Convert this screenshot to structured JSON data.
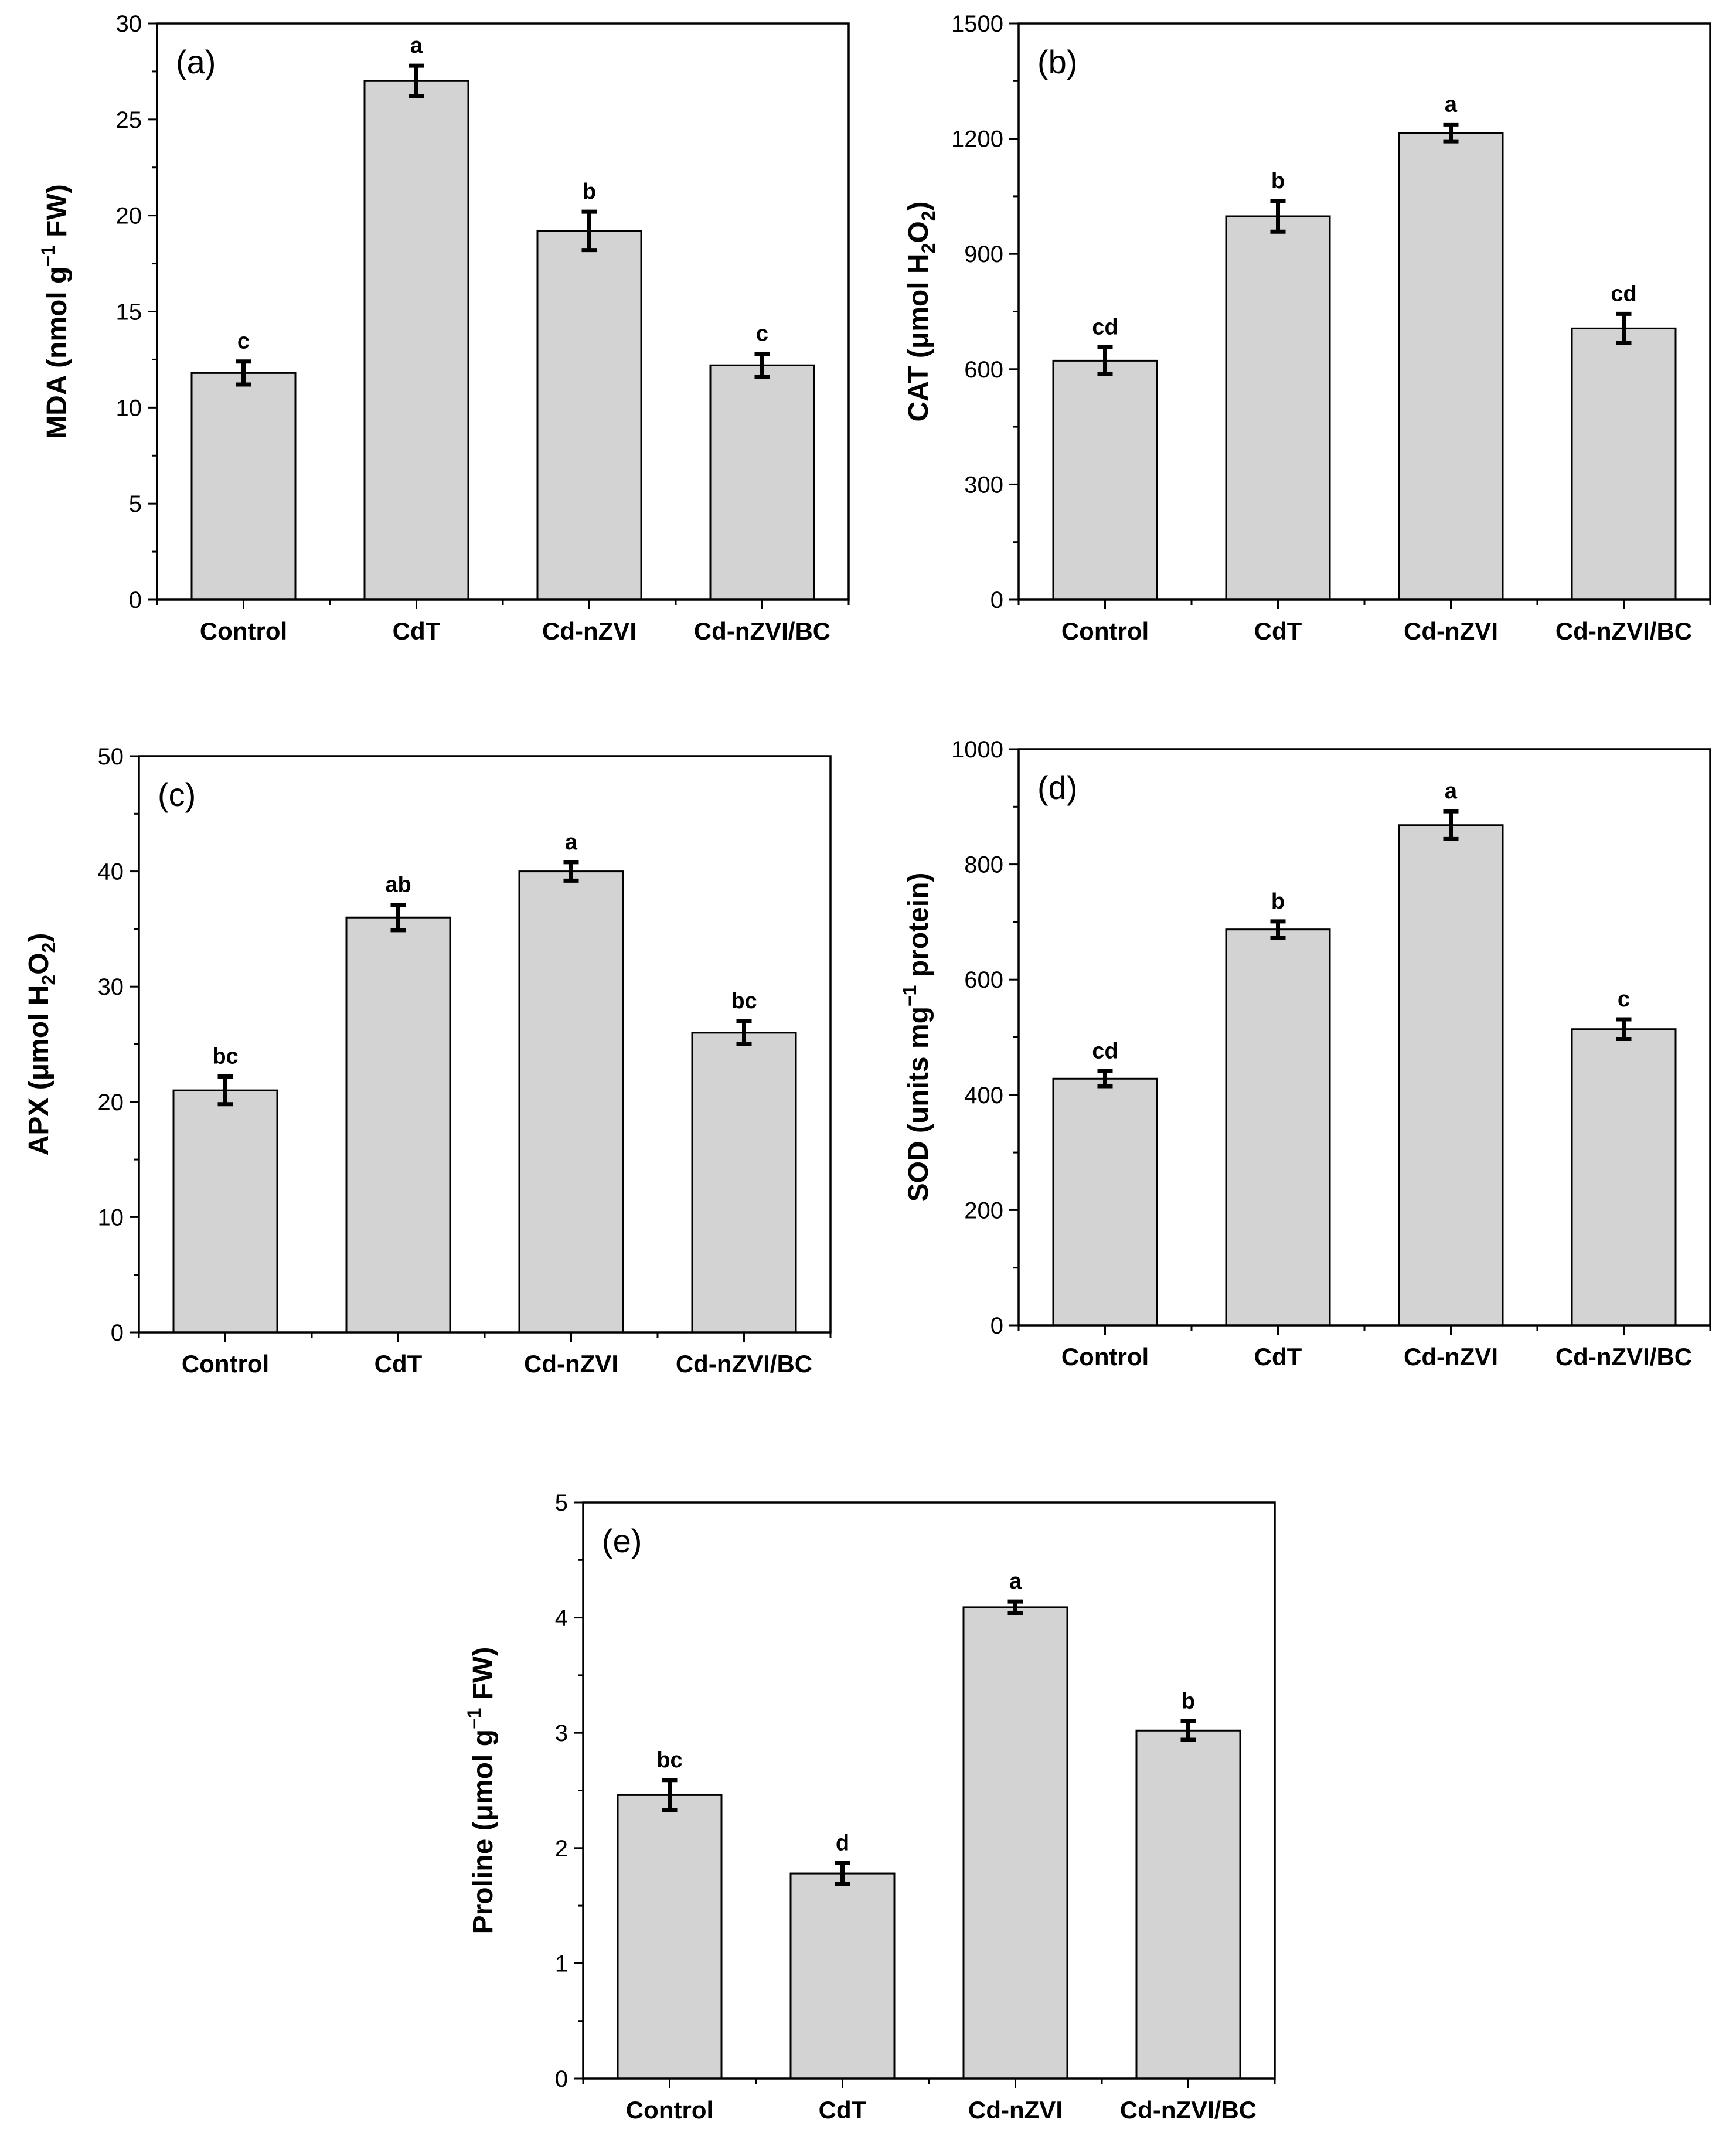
{
  "chart_data": [
    {
      "type": "bar",
      "panel_label": "(a)",
      "ylabel": "MDA (nmol g⁻¹ FW)",
      "ylabel_parts": [
        {
          "t": "MDA (nmol g"
        },
        {
          "t": "−1",
          "sup": true
        },
        {
          "t": " FW)"
        }
      ],
      "xlabel": "",
      "categories": [
        "Control",
        "CdT",
        "Cd-nZVI",
        "Cd-nZVI/BC"
      ],
      "values": [
        11.8,
        27.0,
        19.2,
        12.2
      ],
      "errors": [
        0.6,
        0.8,
        1.0,
        0.6
      ],
      "significance": [
        "c",
        "a",
        "b",
        "c"
      ],
      "ylim": [
        0,
        30
      ],
      "yticks": [
        0,
        5,
        10,
        15,
        20,
        25,
        30
      ],
      "grid": false,
      "legend": "none"
    },
    {
      "type": "bar",
      "panel_label": "(b)",
      "ylabel": "CAT (μmol H₂O₂)",
      "ylabel_parts": [
        {
          "t": "CAT (μmol H"
        },
        {
          "t": "2",
          "sub": true
        },
        {
          "t": "O"
        },
        {
          "t": "2",
          "sub": true
        },
        {
          "t": ")"
        }
      ],
      "xlabel": "",
      "categories": [
        "Control",
        "CdT",
        "Cd-nZVI",
        "Cd-nZVI/BC"
      ],
      "values": [
        622,
        998,
        1215,
        706
      ],
      "errors": [
        35,
        40,
        22,
        38
      ],
      "significance": [
        "cd",
        "b",
        "a",
        "cd"
      ],
      "ylim": [
        0,
        1500
      ],
      "yticks": [
        0,
        300,
        600,
        900,
        1200,
        1500
      ],
      "grid": false,
      "legend": "none"
    },
    {
      "type": "bar",
      "panel_label": "(c)",
      "ylabel": "APX (μmol H₂O₂)",
      "ylabel_parts": [
        {
          "t": "APX (μmol H"
        },
        {
          "t": "2",
          "sub": true
        },
        {
          "t": "O"
        },
        {
          "t": "2",
          "sub": true
        },
        {
          "t": ")"
        }
      ],
      "xlabel": "",
      "categories": [
        "Control",
        "CdT",
        "Cd-nZVI",
        "Cd-nZVI/BC"
      ],
      "values": [
        21.0,
        36.0,
        40.0,
        26.0
      ],
      "errors": [
        1.2,
        1.1,
        0.8,
        1.0
      ],
      "significance": [
        "bc",
        "ab",
        "a",
        "bc"
      ],
      "ylim": [
        0,
        50
      ],
      "yticks": [
        0,
        10,
        20,
        30,
        40,
        50
      ],
      "grid": false,
      "legend": "none"
    },
    {
      "type": "bar",
      "panel_label": "(d)",
      "ylabel": "SOD (units mg⁻¹ protein)",
      "ylabel_parts": [
        {
          "t": "SOD (units mg"
        },
        {
          "t": "−1",
          "sup": true
        },
        {
          "t": " protein)"
        }
      ],
      "xlabel": "",
      "categories": [
        "Control",
        "CdT",
        "Cd-nZVI",
        "Cd-nZVI/BC"
      ],
      "values": [
        428,
        687,
        868,
        514
      ],
      "errors": [
        13,
        14,
        24,
        17
      ],
      "significance": [
        "cd",
        "b",
        "a",
        "c"
      ],
      "ylim": [
        0,
        1000
      ],
      "yticks": [
        0,
        200,
        400,
        600,
        800,
        1000
      ],
      "grid": false,
      "legend": "none"
    },
    {
      "type": "bar",
      "panel_label": "(e)",
      "ylabel": "Proline (μmol g⁻¹ FW)",
      "ylabel_parts": [
        {
          "t": "Proline (μmol g"
        },
        {
          "t": "−1",
          "sup": true
        },
        {
          "t": " FW)"
        }
      ],
      "xlabel": "",
      "categories": [
        "Control",
        "CdT",
        "Cd-nZVI",
        "Cd-nZVI/BC"
      ],
      "values": [
        2.46,
        1.78,
        4.09,
        3.02
      ],
      "errors": [
        0.13,
        0.09,
        0.05,
        0.08
      ],
      "significance": [
        "bc",
        "d",
        "a",
        "b"
      ],
      "ylim": [
        0,
        5
      ],
      "yticks": [
        0,
        1,
        2,
        3,
        4,
        5
      ],
      "grid": false,
      "legend": "none"
    }
  ]
}
